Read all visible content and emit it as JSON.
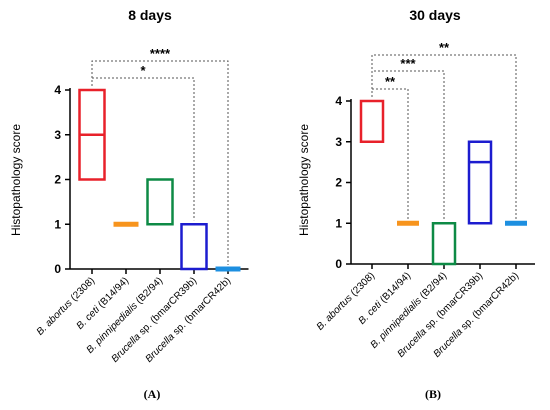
{
  "colors": {
    "abortus": "#e8212a",
    "ceti": "#f7941d",
    "pinnipedialis": "#0d8a45",
    "bmarCR39b": "#1c1ccf",
    "bmarCR42b": "#1d8fe0"
  },
  "chart_data": [
    {
      "type": "floating-bar",
      "panel_label": "(A)",
      "title": "8 days",
      "ylabel": "Histopathology score",
      "ylim": [
        0,
        4
      ],
      "yticks": [
        "0",
        "1",
        "2",
        "3",
        "4"
      ],
      "categories": [
        {
          "italic": "B. abortus",
          "normal": " (2308)"
        },
        {
          "italic": "B. ceti",
          "normal": " (B14/94)"
        },
        {
          "italic": "B. pinnipedialis",
          "normal": " (B2/94)"
        },
        {
          "italic": "Brucella",
          "normal": " sp. (bmarCR39b)"
        },
        {
          "italic": "Brucella",
          "normal": " sp. (bmarCR42b)"
        }
      ],
      "bars": [
        {
          "color_key": "abortus",
          "min": 2,
          "max": 4,
          "median": 3
        },
        {
          "color_key": "ceti",
          "min": 1,
          "max": 1,
          "median": 1
        },
        {
          "color_key": "pinnipedialis",
          "min": 1,
          "max": 2,
          "median": 1
        },
        {
          "color_key": "bmarCR39b",
          "min": 0,
          "max": 1,
          "median": 1
        },
        {
          "color_key": "bmarCR42b",
          "min": 0,
          "max": 0,
          "median": 0
        }
      ],
      "significance": [
        {
          "from": 0,
          "to": 3,
          "label": "*"
        },
        {
          "from": 0,
          "to": 4,
          "label": "****"
        }
      ]
    },
    {
      "type": "floating-bar",
      "panel_label": "(B)",
      "title": "30 days",
      "ylabel": "Histopathology score",
      "ylim": [
        0,
        4
      ],
      "yticks": [
        "0",
        "1",
        "2",
        "3",
        "4"
      ],
      "categories": [
        {
          "italic": "B. abortus",
          "normal": " (2308)"
        },
        {
          "italic": "B. ceti",
          "normal": " (B14/94)"
        },
        {
          "italic": "B. pinnipedialis",
          "normal": " (B2/94)"
        },
        {
          "italic": "Brucella",
          "normal": " sp. (bmarCR39b)"
        },
        {
          "italic": "Brucella",
          "normal": " sp. (bmarCR42b)"
        }
      ],
      "bars": [
        {
          "color_key": "abortus",
          "min": 3,
          "max": 4,
          "median": 4
        },
        {
          "color_key": "ceti",
          "min": 1,
          "max": 1,
          "median": 1
        },
        {
          "color_key": "pinnipedialis",
          "min": 0,
          "max": 1,
          "median": 1
        },
        {
          "color_key": "bmarCR39b",
          "min": 1,
          "max": 3,
          "median": 2.5
        },
        {
          "color_key": "bmarCR42b",
          "min": 1,
          "max": 1,
          "median": 1
        }
      ],
      "significance": [
        {
          "from": 0,
          "to": 1,
          "label": "**"
        },
        {
          "from": 0,
          "to": 2,
          "label": "***"
        },
        {
          "from": 0,
          "to": 4,
          "label": "**"
        }
      ]
    }
  ]
}
